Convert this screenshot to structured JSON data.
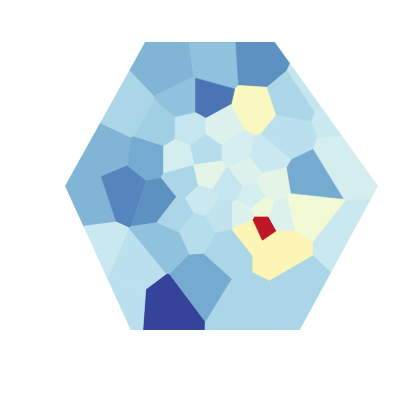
{
  "chart_data": {
    "type": "voronoi",
    "xlim": [
      0,
      100
    ],
    "ylim": [
      0,
      100
    ],
    "color_range": [
      0,
      1
    ],
    "tick_labels": false,
    "cells": [
      {
        "x": 32,
        "y": 9,
        "value": 0.02
      },
      {
        "x": 19,
        "y": 10,
        "value": 0.33
      },
      {
        "x": 33.5,
        "y": 90,
        "value": 0.22
      },
      {
        "x": 48,
        "y": 92,
        "value": 0.25
      },
      {
        "x": 62,
        "y": 93,
        "value": 0.15
      },
      {
        "x": 79,
        "y": 85,
        "value": 0.35
      },
      {
        "x": 14,
        "y": 62,
        "value": 0.22
      },
      {
        "x": 8,
        "y": 45,
        "value": 0.22
      },
      {
        "x": 20,
        "y": 76,
        "value": 0.3
      },
      {
        "x": 19,
        "y": 49,
        "value": 0.13
      },
      {
        "x": 10,
        "y": 28,
        "value": 0.36
      },
      {
        "x": 23,
        "y": 22,
        "value": 0.33
      },
      {
        "x": 89,
        "y": 60,
        "value": 0.38
      },
      {
        "x": 90,
        "y": 30,
        "value": 0.36
      },
      {
        "x": 76,
        "y": 14,
        "value": 0.3
      },
      {
        "x": 58,
        "y": 8,
        "value": 0.3
      },
      {
        "x": 43,
        "y": 18,
        "value": 0.2
      },
      {
        "x": 52,
        "y": 29,
        "value": 0.3
      },
      {
        "x": 61,
        "y": 76,
        "value": 0.5
      },
      {
        "x": 76,
        "y": 42,
        "value": 0.46
      },
      {
        "x": 68,
        "y": 29,
        "value": 0.52
      },
      {
        "x": 59,
        "y": 35,
        "value": 0.52
      },
      {
        "x": 63,
        "y": 37,
        "value": 0.95
      },
      {
        "x": 77,
        "y": 52,
        "value": 0.2
      },
      {
        "x": 45,
        "y": 80,
        "value": 0.1
      },
      {
        "x": 30,
        "y": 45,
        "value": 0.15
      },
      {
        "x": 27,
        "y": 60,
        "value": 0.2
      },
      {
        "x": 88,
        "y": 75,
        "value": 0.36
      },
      {
        "x": 40,
        "y": 70,
        "value": 0.35
      },
      {
        "x": 50,
        "y": 70,
        "value": 0.4
      },
      {
        "x": 55,
        "y": 62,
        "value": 0.38
      },
      {
        "x": 45,
        "y": 62,
        "value": 0.32
      },
      {
        "x": 36,
        "y": 60,
        "value": 0.38
      },
      {
        "x": 38,
        "y": 52,
        "value": 0.3
      },
      {
        "x": 46,
        "y": 54,
        "value": 0.42
      },
      {
        "x": 52,
        "y": 50,
        "value": 0.35
      },
      {
        "x": 58,
        "y": 55,
        "value": 0.4
      },
      {
        "x": 64,
        "y": 60,
        "value": 0.36
      },
      {
        "x": 66,
        "y": 50,
        "value": 0.42
      },
      {
        "x": 60,
        "y": 46,
        "value": 0.38
      },
      {
        "x": 44,
        "y": 45,
        "value": 0.36
      },
      {
        "x": 36,
        "y": 40,
        "value": 0.3
      },
      {
        "x": 50,
        "y": 40,
        "value": 0.34
      },
      {
        "x": 57,
        "y": 40,
        "value": 0.4
      },
      {
        "x": 42,
        "y": 35,
        "value": 0.32
      },
      {
        "x": 70,
        "y": 68,
        "value": 0.33
      },
      {
        "x": 32,
        "y": 30,
        "value": 0.25
      },
      {
        "x": 68,
        "y": 40,
        "value": 0.4
      },
      {
        "x": 63,
        "y": 42,
        "value": 0.45
      },
      {
        "x": 30,
        "y": 70,
        "value": 0.28
      },
      {
        "x": 72,
        "y": 80,
        "value": 0.3
      },
      {
        "x": 38,
        "y": 80,
        "value": 0.25
      }
    ]
  }
}
